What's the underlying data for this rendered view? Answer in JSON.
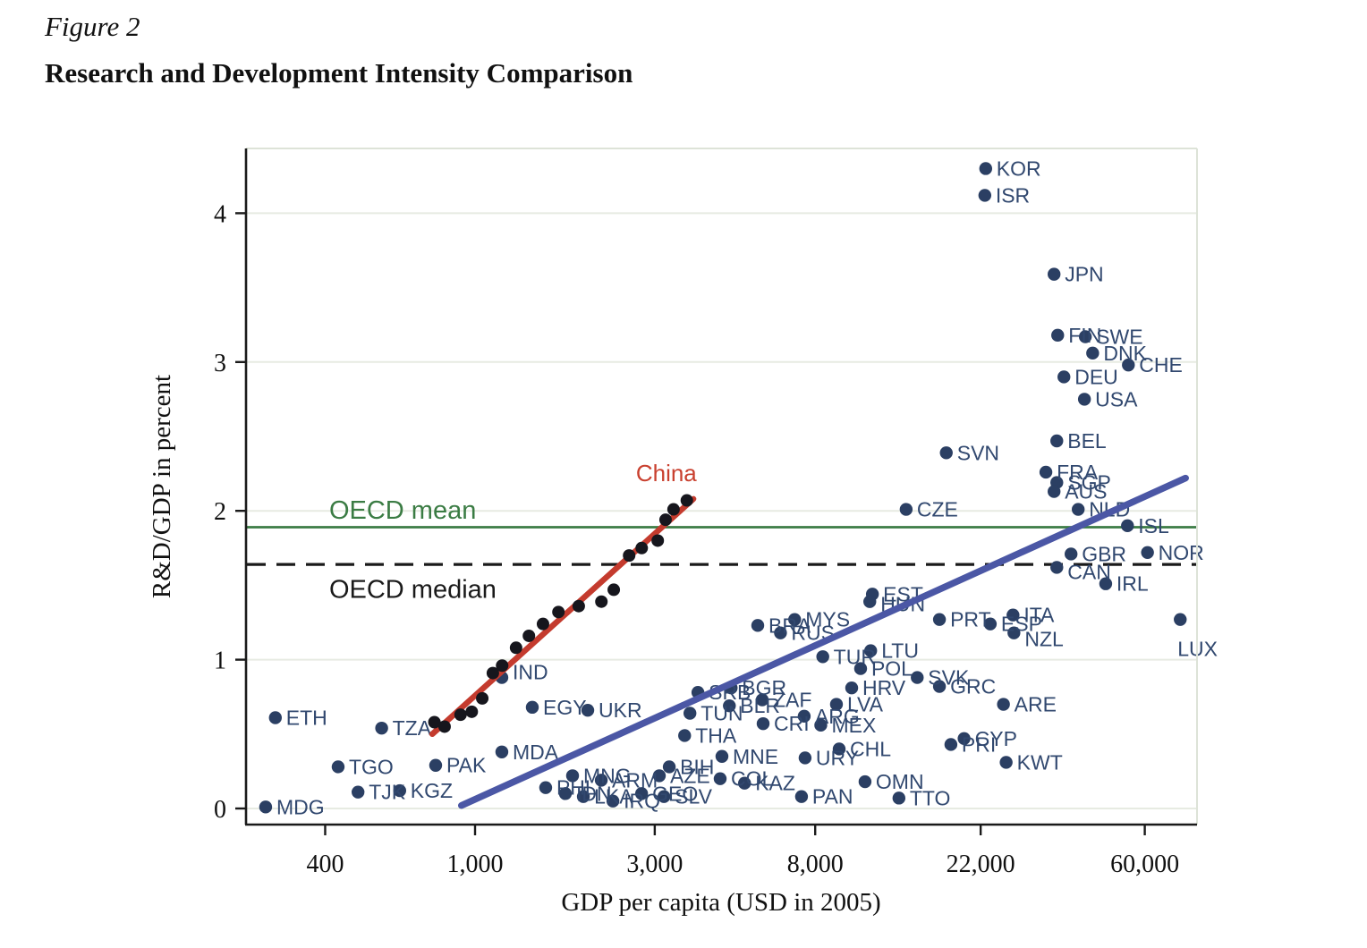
{
  "figure": {
    "label": "Figure 2",
    "title": "Research and Development Intensity Comparison"
  },
  "colors": {
    "dot": "#2b3f63",
    "country_label": "#31486f",
    "china_dot": "#16161d",
    "china_line": "#c43b2e",
    "china_label": "#c9402f",
    "trend_line": "#4b57a5",
    "oecd_mean": "#3b7c44",
    "oecd_median": "#1a1a1a",
    "grid": "#e7ebe2",
    "frame_light": "#dde3d8",
    "axis": "#1a1a1a"
  },
  "chart_data": {
    "type": "scatter",
    "title": "Research and Development Intensity Comparison",
    "xlabel": "GDP per capita (USD in 2005)",
    "ylabel": "R&D/GDP in percent",
    "x_scale": "log",
    "x_range": [
      250,
      84000
    ],
    "y_range": [
      -0.11,
      4.44
    ],
    "grid": "horizontal",
    "x_ticks": [
      {
        "value": 400,
        "label": "400"
      },
      {
        "value": 1000,
        "label": "1,000"
      },
      {
        "value": 3000,
        "label": "3,000"
      },
      {
        "value": 8000,
        "label": "8,000"
      },
      {
        "value": 22000,
        "label": "22,000"
      },
      {
        "value": 60000,
        "label": "60,000"
      }
    ],
    "y_ticks": [
      0,
      1,
      2,
      3,
      4
    ],
    "reference_lines": [
      {
        "name": "oecd-mean",
        "label": "OECD mean",
        "value": 1.89,
        "style": "solid",
        "label_pos": {
          "gdp": 410,
          "rd": 2.0
        }
      },
      {
        "name": "oecd-median",
        "label": "OECD median",
        "value": 1.64,
        "style": "dashed",
        "label_pos": {
          "gdp": 410,
          "rd": 1.47
        }
      }
    ],
    "trend_line": {
      "name": "cross-country-fit",
      "from": {
        "gdp": 920,
        "rd": 0.02
      },
      "to": {
        "gdp": 77000,
        "rd": 2.22
      }
    },
    "china": {
      "label": "China",
      "label_pos": {
        "gdp": 3220,
        "rd": 2.2
      },
      "fit_from": {
        "gdp": 770,
        "rd": 0.5
      },
      "fit_to": {
        "gdp": 3800,
        "rd": 2.08
      },
      "points": [
        [
          780,
          0.58
        ],
        [
          830,
          0.55
        ],
        [
          915,
          0.63
        ],
        [
          980,
          0.65
        ],
        [
          1045,
          0.74
        ],
        [
          1115,
          0.91
        ],
        [
          1180,
          0.96
        ],
        [
          1285,
          1.08
        ],
        [
          1390,
          1.16
        ],
        [
          1515,
          1.24
        ],
        [
          1665,
          1.32
        ],
        [
          1885,
          1.36
        ],
        [
          2165,
          1.39
        ],
        [
          2335,
          1.47
        ],
        [
          2565,
          1.7
        ],
        [
          2770,
          1.75
        ],
        [
          3055,
          1.8
        ],
        [
          3205,
          1.94
        ],
        [
          3365,
          2.01
        ],
        [
          3650,
          2.07
        ]
      ]
    },
    "countries": [
      {
        "code": "MDG",
        "gdp": 278,
        "rd": 0.01
      },
      {
        "code": "ETH",
        "gdp": 295,
        "rd": 0.61
      },
      {
        "code": "TGO",
        "gdp": 433,
        "rd": 0.28
      },
      {
        "code": "TJK",
        "gdp": 489,
        "rd": 0.11
      },
      {
        "code": "KGZ",
        "gdp": 631,
        "rd": 0.12
      },
      {
        "code": "TZA",
        "gdp": 565,
        "rd": 0.54
      },
      {
        "code": "PAK",
        "gdp": 786,
        "rd": 0.29
      },
      {
        "code": "MDA",
        "gdp": 1178,
        "rd": 0.38
      },
      {
        "code": "IND",
        "gdp": 1178,
        "rd": 0.88,
        "ldy": -6
      },
      {
        "code": "EGY",
        "gdp": 1419,
        "rd": 0.68
      },
      {
        "code": "UKR",
        "gdp": 1992,
        "rd": 0.66
      },
      {
        "code": "PHL",
        "gdp": 1540,
        "rd": 0.14
      },
      {
        "code": "MNG",
        "gdp": 1815,
        "rd": 0.22
      },
      {
        "code": "IDN",
        "gdp": 1737,
        "rd": 0.1
      },
      {
        "code": "LKA",
        "gdp": 1939,
        "rd": 0.08
      },
      {
        "code": "ARM",
        "gdp": 2163,
        "rd": 0.19
      },
      {
        "code": "IRQ",
        "gdp": 2323,
        "rd": 0.05
      },
      {
        "code": "GEO",
        "gdp": 2768,
        "rd": 0.1
      },
      {
        "code": "AZE",
        "gdp": 3085,
        "rd": 0.22
      },
      {
        "code": "BIH",
        "gdp": 3278,
        "rd": 0.28
      },
      {
        "code": "SLV",
        "gdp": 3174,
        "rd": 0.08
      },
      {
        "code": "THA",
        "gdp": 3601,
        "rd": 0.49
      },
      {
        "code": "TUN",
        "gdp": 3720,
        "rd": 0.64
      },
      {
        "code": "SRB",
        "gdp": 3906,
        "rd": 0.78
      },
      {
        "code": "BGR",
        "gdp": 4786,
        "rd": 0.81
      },
      {
        "code": "BLR",
        "gdp": 4734,
        "rd": 0.69
      },
      {
        "code": "ZAF",
        "gdp": 5787,
        "rd": 0.73
      },
      {
        "code": "MNE",
        "gdp": 4524,
        "rd": 0.35
      },
      {
        "code": "COL",
        "gdp": 4475,
        "rd": 0.2
      },
      {
        "code": "KAZ",
        "gdp": 5194,
        "rd": 0.17
      },
      {
        "code": "CRI",
        "gdp": 5819,
        "rd": 0.57
      },
      {
        "code": "ARG",
        "gdp": 7480,
        "rd": 0.62
      },
      {
        "code": "MEX",
        "gdp": 8278,
        "rd": 0.56
      },
      {
        "code": "URY",
        "gdp": 7521,
        "rd": 0.34
      },
      {
        "code": "CHL",
        "gdp": 9263,
        "rd": 0.4
      },
      {
        "code": "PAN",
        "gdp": 7358,
        "rd": 0.08
      },
      {
        "code": "OMN",
        "gdp": 10850,
        "rd": 0.18
      },
      {
        "code": "TTO",
        "gdp": 13350,
        "rd": 0.07
      },
      {
        "code": "BRA",
        "gdp": 5631,
        "rd": 1.23
      },
      {
        "code": "RUS",
        "gdp": 6471,
        "rd": 1.18
      },
      {
        "code": "MYS",
        "gdp": 7056,
        "rd": 1.27
      },
      {
        "code": "TUR",
        "gdp": 8380,
        "rd": 1.02
      },
      {
        "code": "LTU",
        "gdp": 11230,
        "rd": 1.06
      },
      {
        "code": "POL",
        "gdp": 10560,
        "rd": 0.94
      },
      {
        "code": "HRV",
        "gdp": 10000,
        "rd": 0.81
      },
      {
        "code": "LVA",
        "gdp": 9110,
        "rd": 0.7
      },
      {
        "code": "EST",
        "gdp": 11350,
        "rd": 1.44
      },
      {
        "code": "HUN",
        "gdp": 11170,
        "rd": 1.39,
        "ldy": 3
      },
      {
        "code": "SVK",
        "gdp": 14930,
        "rd": 0.88
      },
      {
        "code": "GRC",
        "gdp": 17100,
        "rd": 0.82
      },
      {
        "code": "PRT",
        "gdp": 17100,
        "rd": 1.27
      },
      {
        "code": "ESP",
        "gdp": 23330,
        "rd": 1.24
      },
      {
        "code": "ITA",
        "gdp": 26810,
        "rd": 1.3
      },
      {
        "code": "NZL",
        "gdp": 26960,
        "rd": 1.18,
        "ldy": 7
      },
      {
        "code": "ARE",
        "gdp": 25290,
        "rd": 0.7
      },
      {
        "code": "CYP",
        "gdp": 19880,
        "rd": 0.47
      },
      {
        "code": "PRI",
        "gdp": 18340,
        "rd": 0.43
      },
      {
        "code": "KWT",
        "gdp": 25710,
        "rd": 0.31
      },
      {
        "code": "CZE",
        "gdp": 13950,
        "rd": 2.01
      },
      {
        "code": "SVN",
        "gdp": 17830,
        "rd": 2.39
      },
      {
        "code": "LUX",
        "gdp": 74530,
        "rd": 1.27,
        "ldx": -15,
        "ldy": 33
      },
      {
        "code": "KOR",
        "gdp": 22690,
        "rd": 4.3
      },
      {
        "code": "ISR",
        "gdp": 22570,
        "rd": 4.12
      },
      {
        "code": "JPN",
        "gdp": 34460,
        "rd": 3.59
      },
      {
        "code": "FIN",
        "gdp": 35230,
        "rd": 3.18
      },
      {
        "code": "SWE",
        "gdp": 41720,
        "rd": 3.17
      },
      {
        "code": "DNK",
        "gdp": 43630,
        "rd": 3.06
      },
      {
        "code": "CHE",
        "gdp": 54280,
        "rd": 2.98
      },
      {
        "code": "DEU",
        "gdp": 36600,
        "rd": 2.9
      },
      {
        "code": "USA",
        "gdp": 41490,
        "rd": 2.75
      },
      {
        "code": "BEL",
        "gdp": 35040,
        "rd": 2.47
      },
      {
        "code": "FRA",
        "gdp": 32780,
        "rd": 2.26
      },
      {
        "code": "SGP",
        "gdp": 35040,
        "rd": 2.19
      },
      {
        "code": "AUS",
        "gdp": 34460,
        "rd": 2.13
      },
      {
        "code": "NLD",
        "gdp": 39940,
        "rd": 2.01
      },
      {
        "code": "ISL",
        "gdp": 53980,
        "rd": 1.9
      },
      {
        "code": "GBR",
        "gdp": 38230,
        "rd": 1.71
      },
      {
        "code": "NOR",
        "gdp": 61010,
        "rd": 1.72
      },
      {
        "code": "CAN",
        "gdp": 35040,
        "rd": 1.62,
        "ldy": 5
      },
      {
        "code": "IRL",
        "gdp": 47250,
        "rd": 1.51
      }
    ]
  }
}
